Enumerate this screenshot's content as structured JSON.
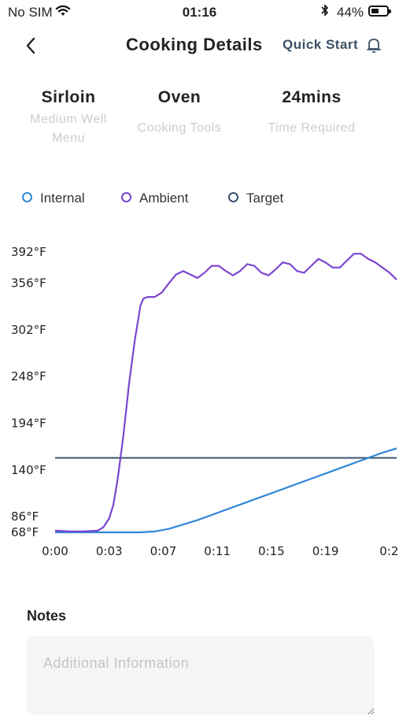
{
  "status_bar": {
    "carrier": "No SIM",
    "time": "01:16",
    "battery_percent": "44%",
    "battery_level": 0.44,
    "icons": [
      "wifi-icon",
      "bluetooth-icon",
      "battery-icon"
    ]
  },
  "nav": {
    "title": "Cooking Details",
    "quick_start": "Quick Start",
    "back_icon": "chevron-left-icon",
    "bell_icon": "bell-icon"
  },
  "summary": [
    {
      "value": "Sirloin",
      "sub1": "Medium Well",
      "sub2": "Menu"
    },
    {
      "value": "Oven",
      "sub1": "Cooking Tools",
      "sub2": ""
    },
    {
      "value": "24mins",
      "sub1": "Time Required",
      "sub2": ""
    }
  ],
  "legend": [
    {
      "label": "Internal",
      "color": "#2e86d6"
    },
    {
      "label": "Ambient",
      "color": "#7b45d1"
    },
    {
      "label": "Target",
      "color": "#3a5470"
    }
  ],
  "chart_data": {
    "type": "line",
    "title": "",
    "xlabel": "",
    "ylabel": "",
    "x_ticks": [
      "0:00",
      "0:03",
      "0:07",
      "0:11",
      "0:15",
      "0:19",
      "0:2"
    ],
    "y_ticks": [
      "68°F",
      "86°F",
      "140°F",
      "194°F",
      "248°F",
      "302°F",
      "356°F",
      "392°F"
    ],
    "y_tick_values": [
      68,
      86,
      140,
      194,
      248,
      302,
      356,
      392
    ],
    "xlim": [
      0,
      24
    ],
    "ylim": [
      68,
      392
    ],
    "grid": false,
    "series": [
      {
        "name": "Ambient",
        "color": "#7b45d1",
        "x": [
          0,
          1,
          2,
          3,
          3.4,
          3.8,
          4.1,
          4.4,
          4.8,
          5.2,
          5.6,
          6.0,
          6.2,
          6.5,
          7.0,
          7.5,
          8.0,
          8.5,
          9.0,
          9.5,
          10.0,
          10.5,
          11.0,
          11.5,
          12.0,
          12.5,
          13.0,
          13.5,
          14.0,
          14.5,
          15.0,
          15.5,
          16.0,
          16.5,
          17.0,
          17.5,
          18.0,
          18.5,
          19.0,
          19.5,
          20.0,
          20.5,
          21.0,
          21.5,
          22.0,
          22.5,
          23.0,
          23.5,
          24.0
        ],
        "y": [
          70,
          69,
          69,
          70,
          74,
          84,
          100,
          130,
          180,
          240,
          290,
          330,
          338,
          340,
          340,
          345,
          356,
          366,
          370,
          366,
          362,
          368,
          376,
          376,
          370,
          365,
          370,
          378,
          376,
          368,
          365,
          372,
          380,
          378,
          370,
          368,
          376,
          384,
          380,
          374,
          374,
          382,
          390,
          390,
          384,
          380,
          374,
          368,
          360
        ]
      },
      {
        "name": "Internal",
        "color": "#2e86d6",
        "x": [
          0,
          2,
          4,
          5,
          6,
          7,
          8,
          9,
          10,
          11,
          12,
          13,
          14,
          15,
          16,
          17,
          18,
          19,
          20,
          21,
          22,
          23,
          24
        ],
        "y": [
          68,
          68,
          68,
          68,
          68,
          69,
          72,
          77,
          82,
          88,
          94,
          100,
          106,
          112,
          118,
          124,
          130,
          136,
          142,
          148,
          154,
          160,
          165
        ]
      },
      {
        "name": "Target",
        "color": "#3a5470",
        "x": [
          0,
          24
        ],
        "y": [
          154,
          154
        ]
      }
    ]
  },
  "notes": {
    "title": "Notes",
    "placeholder": "Additional Information"
  }
}
